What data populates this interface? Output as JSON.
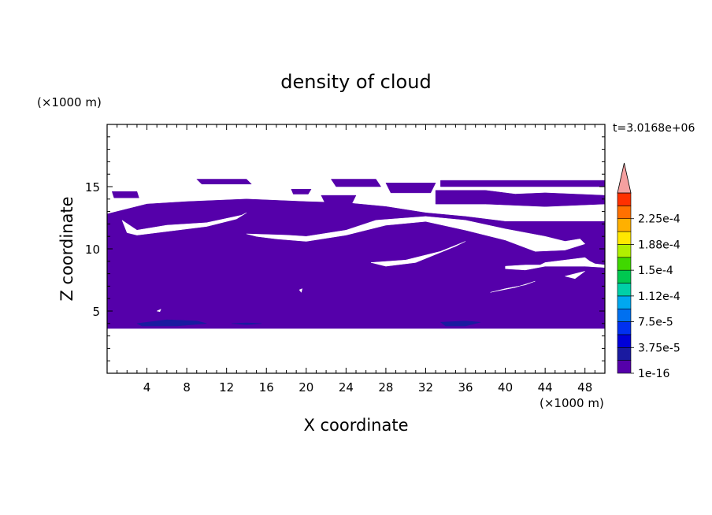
{
  "chart_data": {
    "type": "heatmap",
    "title": "density of cloud",
    "xlabel": "X coordinate",
    "ylabel": "Z coordinate",
    "x_unit": "(×1000 m)",
    "y_unit": "(×1000 m)",
    "time_label": "t=3.0168e+06",
    "xlim": [
      0,
      50
    ],
    "ylim": [
      0,
      20
    ],
    "x_ticks": [
      4,
      8,
      12,
      16,
      20,
      24,
      28,
      32,
      36,
      40,
      44,
      48
    ],
    "y_ticks": [
      5,
      10,
      15
    ],
    "grid": false,
    "colorbar": {
      "labels": [
        "2.25e-4",
        "1.88e-4",
        "1.5e-4",
        "1.12e-4",
        "7.5e-5",
        "3.75e-5",
        "1e-16"
      ],
      "levels": [
        1e-16,
        1.875e-05,
        3.75e-05,
        5.625e-05,
        7.5e-05,
        9.375e-05,
        0.0001125,
        0.00013125,
        0.00015,
        0.00016875,
        0.0001875,
        0.00020625,
        0.000225,
        0.00024375
      ],
      "colors": [
        "#5500aa",
        "#1a1aa0",
        "#0000d8",
        "#0030f0",
        "#0070f0",
        "#00a8f0",
        "#00d0a8",
        "#00c850",
        "#40d800",
        "#b0f000",
        "#ffe800",
        "#ffb000",
        "#ff7000",
        "#ff3000"
      ],
      "overflow_color": "#f5a0a0",
      "overflow": "upper-arrow"
    },
    "cloud_color": "#5500aa",
    "main_layer": {
      "z_bottom": 3.6,
      "z_top": 12.0
    },
    "cloud_regions": [
      {
        "level": 0,
        "points": [
          [
            0,
            3.6
          ],
          [
            50,
            3.6
          ],
          [
            50,
            12.2
          ],
          [
            46,
            12.2
          ],
          [
            40,
            12.2
          ],
          [
            36,
            12.6
          ],
          [
            32,
            12.9
          ],
          [
            28,
            13.4
          ],
          [
            24,
            13.7
          ],
          [
            20,
            13.8
          ],
          [
            14,
            14.0
          ],
          [
            8,
            13.8
          ],
          [
            4,
            13.6
          ],
          [
            1,
            13.0
          ],
          [
            0,
            12.8
          ]
        ]
      },
      {
        "level": 0,
        "points": [
          [
            9,
            15.6
          ],
          [
            14,
            15.6
          ],
          [
            14.5,
            15.2
          ],
          [
            9.5,
            15.2
          ]
        ]
      },
      {
        "level": 0,
        "points": [
          [
            0.5,
            14.6
          ],
          [
            3,
            14.6
          ],
          [
            3.2,
            14.1
          ],
          [
            0.7,
            14.1
          ]
        ]
      },
      {
        "level": 0,
        "points": [
          [
            22.5,
            15.6
          ],
          [
            27,
            15.6
          ],
          [
            27.5,
            15.0
          ],
          [
            23,
            15.0
          ]
        ]
      },
      {
        "level": 0,
        "points": [
          [
            18.5,
            14.8
          ],
          [
            20.5,
            14.8
          ],
          [
            20.2,
            14.4
          ],
          [
            18.7,
            14.4
          ]
        ]
      },
      {
        "level": 0,
        "points": [
          [
            21.5,
            14.3
          ],
          [
            25,
            14.3
          ],
          [
            24.5,
            13.5
          ],
          [
            22,
            13.5
          ]
        ]
      },
      {
        "level": 0,
        "points": [
          [
            28,
            15.3
          ],
          [
            33,
            15.3
          ],
          [
            32.5,
            14.5
          ],
          [
            28.5,
            14.5
          ]
        ]
      },
      {
        "level": 0,
        "points": [
          [
            33.5,
            15.5
          ],
          [
            50,
            15.5
          ],
          [
            50,
            15.0
          ],
          [
            33.5,
            15.0
          ]
        ]
      },
      {
        "level": 0,
        "points": [
          [
            33,
            14.7
          ],
          [
            38,
            14.7
          ],
          [
            41,
            14.4
          ],
          [
            44,
            14.5
          ],
          [
            50,
            14.3
          ],
          [
            50,
            13.6
          ],
          [
            44,
            13.4
          ],
          [
            38,
            13.6
          ],
          [
            33,
            13.6
          ]
        ]
      },
      {
        "level": 0,
        "points": [
          [
            0,
            8.4
          ],
          [
            0.5,
            8.6
          ],
          [
            0.5,
            8.8
          ],
          [
            0,
            8.9
          ]
        ]
      },
      {
        "level": 1,
        "points": [
          [
            3,
            4.0
          ],
          [
            6,
            4.3
          ],
          [
            9,
            4.2
          ],
          [
            10,
            4.0
          ],
          [
            7,
            3.8
          ],
          [
            3.5,
            3.8
          ]
        ]
      },
      {
        "level": 1,
        "points": [
          [
            33.5,
            4.1
          ],
          [
            36,
            4.2
          ],
          [
            37.5,
            4.1
          ],
          [
            36,
            3.8
          ],
          [
            34,
            3.8
          ]
        ]
      },
      {
        "level": 1,
        "points": [
          [
            12.5,
            4.0
          ],
          [
            14,
            4.05
          ],
          [
            15.5,
            4.0
          ],
          [
            14,
            3.9
          ]
        ]
      }
    ],
    "clear_gaps": [
      [
        [
          1.5,
          12.3
        ],
        [
          3,
          11.5
        ],
        [
          6,
          11.9
        ],
        [
          10,
          12.1
        ],
        [
          13.5,
          12.7
        ],
        [
          14,
          12.9
        ],
        [
          13,
          12.4
        ],
        [
          10,
          11.8
        ],
        [
          6,
          11.4
        ],
        [
          3,
          11.1
        ],
        [
          2,
          11.3
        ]
      ],
      [
        [
          14,
          11.2
        ],
        [
          18,
          11.1
        ],
        [
          20,
          11.0
        ],
        [
          24,
          11.5
        ],
        [
          27,
          12.3
        ],
        [
          32,
          12.6
        ],
        [
          36,
          12.3
        ],
        [
          40,
          11.6
        ],
        [
          44,
          11.0
        ],
        [
          46,
          10.6
        ],
        [
          47.5,
          10.8
        ],
        [
          48,
          10.4
        ],
        [
          46,
          9.9
        ],
        [
          43,
          9.8
        ],
        [
          40,
          10.7
        ],
        [
          36,
          11.5
        ],
        [
          32,
          12.2
        ],
        [
          28,
          11.9
        ],
        [
          24,
          11.1
        ],
        [
          20,
          10.6
        ],
        [
          17,
          10.8
        ],
        [
          15,
          11.0
        ]
      ],
      [
        [
          26.5,
          8.9
        ],
        [
          30,
          9.1
        ],
        [
          33.5,
          9.8
        ],
        [
          36,
          10.6
        ],
        [
          35,
          10.2
        ],
        [
          31,
          8.9
        ],
        [
          28,
          8.6
        ]
      ],
      [
        [
          40,
          8.6
        ],
        [
          42,
          8.7
        ],
        [
          43.5,
          8.7
        ],
        [
          44,
          8.9
        ],
        [
          48,
          9.3
        ],
        [
          48.5,
          9.0
        ],
        [
          49,
          8.8
        ],
        [
          50,
          8.7
        ],
        [
          50,
          8.5
        ],
        [
          48,
          8.6
        ],
        [
          44,
          8.6
        ],
        [
          42,
          8.3
        ],
        [
          40,
          8.4
        ]
      ],
      [
        [
          38.5,
          6.5
        ],
        [
          41,
          6.9
        ],
        [
          43,
          7.4
        ],
        [
          42,
          7.1
        ],
        [
          40,
          6.8
        ]
      ],
      [
        [
          46,
          7.8
        ],
        [
          48,
          8.2
        ],
        [
          47,
          7.6
        ]
      ],
      [
        [
          19.3,
          6.7
        ],
        [
          19.6,
          6.8
        ],
        [
          19.5,
          6.5
        ]
      ],
      [
        [
          5,
          5.0
        ],
        [
          5.4,
          5.15
        ],
        [
          5.3,
          4.95
        ]
      ]
    ]
  }
}
